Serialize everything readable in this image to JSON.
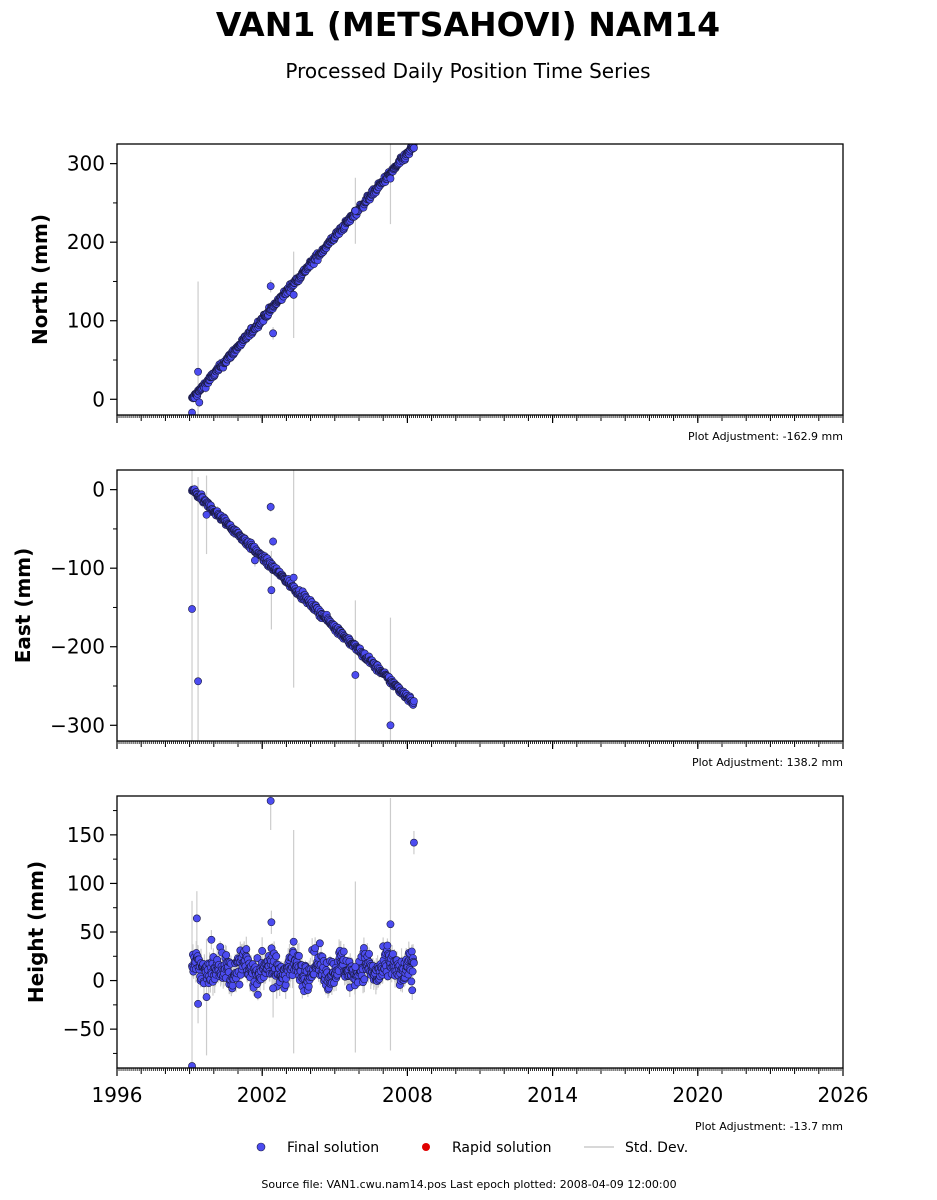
{
  "title": "VAN1 (METSAHOVI) NAM14",
  "subtitle": "Processed Daily Position Time Series",
  "colors": {
    "final": "#4c4cf0",
    "final_edge": "#1a1a40",
    "rapid": "#e00000",
    "stddev": "#cccccc"
  },
  "legend": {
    "final": "Final solution",
    "rapid": "Rapid solution",
    "stddev": "Std. Dev."
  },
  "source_text": "Source file: VAN1.cwu.nam14.pos  Last epoch plotted: 2008-04-09 12:00:00",
  "chart_data": [
    {
      "type": "scatter",
      "ylabel": "North (mm)",
      "xlim": [
        1996,
        2026
      ],
      "ylim": [
        -20,
        325
      ],
      "yticks": [
        0,
        100,
        200,
        300
      ],
      "adjustment": "Plot Adjustment: -162.9 mm",
      "trend": {
        "x0": 1999.1,
        "y0": 0,
        "x1": 2008.27,
        "y1": 322
      },
      "noise": 3,
      "outliers": [
        {
          "x": 1999.1,
          "y": -17,
          "err": 6
        },
        {
          "x": 1999.35,
          "y": 35,
          "err": 115
        },
        {
          "x": 1999.4,
          "y": -4,
          "err": 6
        },
        {
          "x": 2002.35,
          "y": 144,
          "err": 8
        },
        {
          "x": 2002.45,
          "y": 84,
          "err": 8
        },
        {
          "x": 2003.3,
          "y": 133,
          "err": 55
        },
        {
          "x": 2005.85,
          "y": 240,
          "err": 42
        },
        {
          "x": 2007.3,
          "y": 281,
          "err": 58
        }
      ]
    },
    {
      "type": "scatter",
      "ylabel": "East (mm)",
      "xlim": [
        1996,
        2026
      ],
      "ylim": [
        -320,
        25
      ],
      "yticks": [
        -300,
        -200,
        -100,
        0
      ],
      "adjustment": "Plot Adjustment: 138.2 mm",
      "trend": {
        "x0": 1999.1,
        "y0": 0,
        "x1": 2008.27,
        "y1": -272
      },
      "noise": 3,
      "outliers": [
        {
          "x": 1999.1,
          "y": -152,
          "err": 180
        },
        {
          "x": 1999.35,
          "y": -244,
          "err": 260
        },
        {
          "x": 1999.7,
          "y": -32,
          "err": 50
        },
        {
          "x": 2001.7,
          "y": -90,
          "err": 8
        },
        {
          "x": 2002.35,
          "y": -22,
          "err": 6
        },
        {
          "x": 2002.45,
          "y": -66,
          "err": 6
        },
        {
          "x": 2002.38,
          "y": -128,
          "err": 50
        },
        {
          "x": 2003.3,
          "y": -112,
          "err": 140
        },
        {
          "x": 2005.85,
          "y": -236,
          "err": 95
        },
        {
          "x": 2007.3,
          "y": -300,
          "err": 137
        }
      ]
    },
    {
      "type": "scatter",
      "ylabel": "Height (mm)",
      "xlim": [
        1996,
        2026
      ],
      "ylim": [
        -90,
        190
      ],
      "yticks": [
        -50,
        0,
        50,
        100,
        150
      ],
      "adjustment": "Plot Adjustment: -13.7 mm",
      "trend": {
        "x0": 1999.1,
        "y0": 12,
        "x1": 2008.27,
        "y1": 12
      },
      "noise": 11,
      "outliers": [
        {
          "x": 1999.1,
          "y": -88,
          "err": 170
        },
        {
          "x": 1999.3,
          "y": 64,
          "err": 28
        },
        {
          "x": 1999.35,
          "y": -24,
          "err": 20
        },
        {
          "x": 1999.7,
          "y": -17,
          "err": 60
        },
        {
          "x": 1999.9,
          "y": 42,
          "err": 10
        },
        {
          "x": 2002.35,
          "y": 185,
          "err": 30
        },
        {
          "x": 2002.38,
          "y": 60,
          "err": 12
        },
        {
          "x": 2002.45,
          "y": -8,
          "err": 30
        },
        {
          "x": 2003.3,
          "y": 40,
          "err": 115
        },
        {
          "x": 2005.85,
          "y": 14,
          "err": 88
        },
        {
          "x": 2007.3,
          "y": 58,
          "err": 130
        },
        {
          "x": 2008.2,
          "y": -10,
          "err": 10
        },
        {
          "x": 2008.27,
          "y": 142,
          "err": 12
        }
      ]
    }
  ],
  "xticks": [
    1996,
    2002,
    2008,
    2014,
    2020,
    2026
  ]
}
